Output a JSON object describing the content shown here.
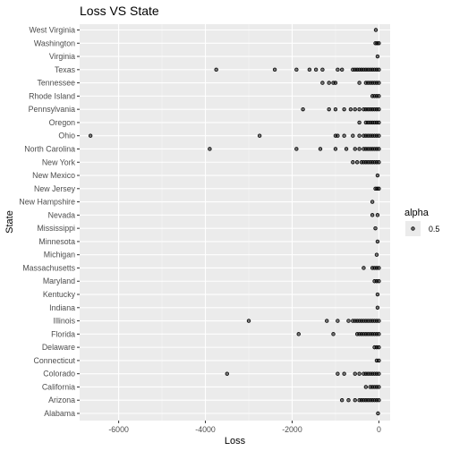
{
  "chart_data": {
    "type": "scatter",
    "title": "Loss VS State",
    "xlabel": "Loss",
    "ylabel": "State",
    "xlim": [
      -6900,
      260
    ],
    "x_ticks": [
      -6000,
      -4000,
      -2000,
      0
    ],
    "x_tick_labels": [
      "-6000",
      "-4000",
      "-2000",
      "0"
    ],
    "grid": true,
    "legend": {
      "title": "alpha",
      "entries": [
        "0.5"
      ],
      "position": "right"
    },
    "categories": [
      "Alabama",
      "Arizona",
      "California",
      "Colorado",
      "Connecticut",
      "Delaware",
      "Florida",
      "Illinois",
      "Indiana",
      "Kentucky",
      "Maryland",
      "Massachusetts",
      "Michigan",
      "Minnesota",
      "Mississippi",
      "Nevada",
      "New Hampshire",
      "New Jersey",
      "New Mexico",
      "New York",
      "North Carolina",
      "Ohio",
      "Oregon",
      "Pennsylvania",
      "Rhode Island",
      "Tennessee",
      "Texas",
      "Virginia",
      "Washington",
      "West Virginia"
    ],
    "points": {
      "Alabama": [
        -20
      ],
      "Arizona": [
        -850,
        -700,
        -550,
        -450,
        -400,
        -350,
        -300,
        -250,
        -200,
        -150,
        -100,
        -50,
        0
      ],
      "California": [
        -300,
        -200,
        -150,
        -100,
        -50,
        0
      ],
      "Colorado": [
        -3500,
        -950,
        -800,
        -550,
        -450,
        -350,
        -300,
        -250,
        -200,
        -150,
        -100,
        -50,
        0
      ],
      "Connecticut": [
        -50,
        0
      ],
      "Delaware": [
        -100,
        -50,
        0
      ],
      "Florida": [
        -1850,
        -1050,
        -500,
        -450,
        -400,
        -350,
        -300,
        -250,
        -200,
        -150,
        -100,
        -50,
        0
      ],
      "Illinois": [
        -3000,
        -1200,
        -950,
        -700,
        -600,
        -550,
        -500,
        -450,
        -400,
        -350,
        -300,
        -250,
        -200,
        -150,
        -100,
        -50,
        0
      ],
      "Indiana": [
        -30
      ],
      "Kentucky": [
        -30
      ],
      "Maryland": [
        -100,
        -50,
        0
      ],
      "Massachusetts": [
        -350,
        -150,
        -100,
        -50,
        0
      ],
      "Michigan": [
        -50
      ],
      "Minnesota": [
        -30
      ],
      "Mississippi": [
        -80
      ],
      "Nevada": [
        -150,
        -30
      ],
      "New Hampshire": [
        -150
      ],
      "New Jersey": [
        -80,
        -40,
        0
      ],
      "New Mexico": [
        -30
      ],
      "New York": [
        -600,
        -500,
        -400,
        -350,
        -300,
        -250,
        -200,
        -150,
        -100,
        -50,
        0
      ],
      "North Carolina": [
        -3900,
        -1900,
        -1350,
        -1000,
        -750,
        -550,
        -450,
        -350,
        -300,
        -250,
        -200,
        -150,
        -100,
        -50,
        0
      ],
      "Ohio": [
        -6650,
        -2750,
        -1000,
        -950,
        -800,
        -600,
        -450,
        -350,
        -300,
        -250,
        -200,
        -150,
        -100,
        -50,
        0
      ],
      "Oregon": [
        -450,
        -300,
        -250,
        -200,
        -150,
        -100,
        -50,
        0
      ],
      "Pennsylvania": [
        -1750,
        -1150,
        -1000,
        -800,
        -650,
        -550,
        -450,
        -350,
        -300,
        -250,
        -200,
        -150,
        -100,
        -50,
        0
      ],
      "Rhode Island": [
        -150,
        -100,
        -50,
        0
      ],
      "Tennessee": [
        -1300,
        -1150,
        -1050,
        -1000,
        -450,
        -300,
        -250,
        -200,
        -150,
        -100,
        -50,
        0
      ],
      "Texas": [
        -3750,
        -2400,
        -1900,
        -1600,
        -1450,
        -1300,
        -950,
        -850,
        -600,
        -550,
        -500,
        -450,
        -400,
        -350,
        -300,
        -250,
        -200,
        -150,
        -100,
        -50,
        0
      ],
      "Virginia": [
        -30
      ],
      "Washington": [
        -80,
        -40,
        0
      ],
      "West Virginia": [
        -70
      ]
    }
  }
}
